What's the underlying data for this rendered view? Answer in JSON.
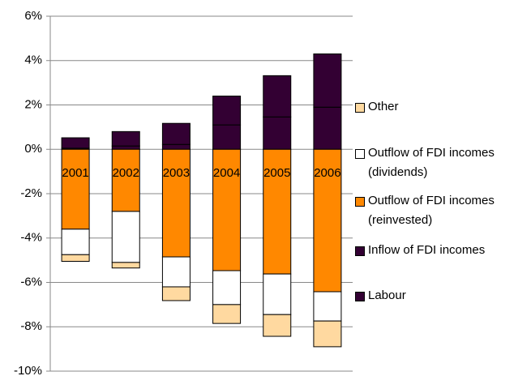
{
  "chart_data": {
    "type": "stacked-bar",
    "categories": [
      "2001",
      "2002",
      "2003",
      "2004",
      "2005",
      "2006"
    ],
    "series": [
      {
        "name": "Labour",
        "color": "#330033",
        "values": [
          0.05,
          0.15,
          0.22,
          1.1,
          1.46,
          1.9
        ]
      },
      {
        "name": "Inflow of FDI incomes",
        "color": "#330033",
        "values": [
          0.47,
          0.65,
          0.95,
          1.3,
          1.86,
          2.4
        ]
      },
      {
        "name": "Outflow of FDI incomes (reinvested)",
        "color": "#ff8800",
        "values": [
          -3.6,
          -2.8,
          -4.85,
          -5.47,
          -5.62,
          -6.42
        ]
      },
      {
        "name": "Outflow of FDI incomes (dividends)",
        "color": "#ffffff",
        "values": [
          -1.15,
          -2.3,
          -1.35,
          -1.53,
          -1.83,
          -1.32
        ]
      },
      {
        "name": "Other",
        "color": "#ffd9a0",
        "values": [
          -0.3,
          -0.25,
          -0.62,
          -0.85,
          -0.98,
          -1.16
        ]
      }
    ],
    "ylim": [
      -10,
      6
    ],
    "yticks": [
      {
        "value": -10,
        "label": "-10%"
      },
      {
        "value": -8,
        "label": "-8%"
      },
      {
        "value": -6,
        "label": "-6%"
      },
      {
        "value": -4,
        "label": "-4%"
      },
      {
        "value": -2,
        "label": "-2%"
      },
      {
        "value": 0,
        "label": "0%"
      },
      {
        "value": 2,
        "label": "2%"
      },
      {
        "value": 4,
        "label": "4%"
      },
      {
        "value": 6,
        "label": "6%"
      }
    ],
    "grid": true,
    "legend": "right"
  }
}
